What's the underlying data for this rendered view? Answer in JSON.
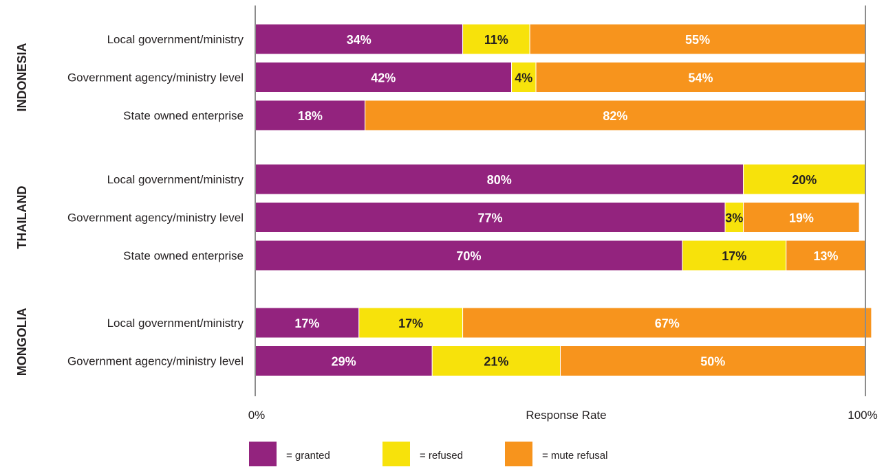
{
  "chart_data": {
    "type": "bar",
    "orientation": "horizontal",
    "stacked": true,
    "xlabel": "Response Rate",
    "xlim": [
      0,
      100
    ],
    "xtick_labels": [
      "0%",
      "100%"
    ],
    "legend_position": "bottom",
    "groups": [
      {
        "name": "INDONESIA",
        "rows": [
          {
            "label": "Local government/ministry",
            "values": [
              34,
              11,
              55
            ],
            "data_labels": [
              "34%",
              "11%",
              "55%"
            ]
          },
          {
            "label": "Government agency/ministry level",
            "values": [
              42,
              4,
              54
            ],
            "data_labels": [
              "42%",
              "4%",
              "54%"
            ]
          },
          {
            "label": "State owned enterprise",
            "values": [
              18,
              0,
              82
            ],
            "data_labels": [
              "18%",
              "",
              "82%"
            ]
          }
        ]
      },
      {
        "name": "THAILAND",
        "rows": [
          {
            "label": "Local government/ministry",
            "values": [
              80,
              20,
              0
            ],
            "data_labels": [
              "80%",
              "20%",
              ""
            ]
          },
          {
            "label": "Government agency/ministry level",
            "values": [
              77,
              3,
              19
            ],
            "data_labels": [
              "77%",
              "3%",
              "19%"
            ]
          },
          {
            "label": "State owned enterprise",
            "values": [
              70,
              17,
              13
            ],
            "data_labels": [
              "70%",
              "17%",
              "13%"
            ]
          }
        ]
      },
      {
        "name": "MONGOLIA",
        "rows": [
          {
            "label": "Local government/ministry",
            "values": [
              17,
              17,
              67
            ],
            "data_labels": [
              "17%",
              "17%",
              "67%"
            ]
          },
          {
            "label": "Government agency/ministry level",
            "values": [
              29,
              21,
              50
            ],
            "data_labels": [
              "29%",
              "21%",
              "50%"
            ]
          }
        ]
      }
    ],
    "series": [
      {
        "name": "= granted",
        "color": "#93237e",
        "label_color": "#ffffff"
      },
      {
        "name": "= refused",
        "color": "#f7e20b",
        "label_color": "#231f20"
      },
      {
        "name": "= mute refusal",
        "color": "#f7941d",
        "label_color": "#ffffff"
      }
    ]
  }
}
